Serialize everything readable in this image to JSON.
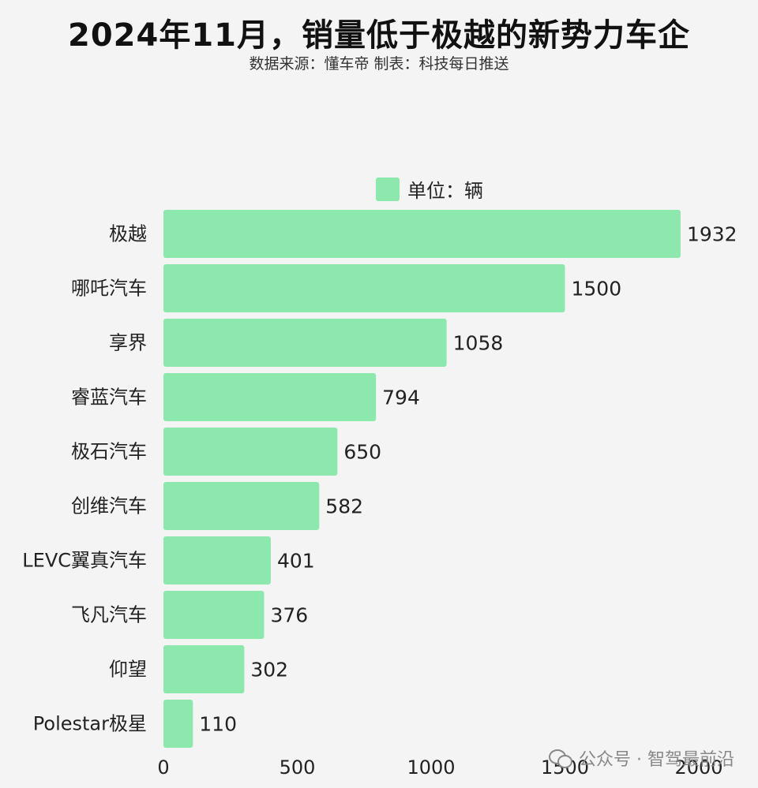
{
  "chart_data": {
    "type": "bar",
    "orientation": "horizontal",
    "title": "2024年11月，销量低于极越的新势力车企",
    "subtitle": "数据来源：懂车帝 制表：科技每日推送",
    "legend": {
      "label": "单位：辆",
      "placement": "top"
    },
    "categories": [
      "极越",
      "哪吒汽车",
      "享界",
      "睿蓝汽车",
      "极石汽车",
      "创维汽车",
      "LEVC翼真汽车",
      "飞凡汽车",
      "仰望",
      "Polestar极星"
    ],
    "values": [
      1932,
      1500,
      1058,
      794,
      650,
      582,
      401,
      376,
      302,
      110
    ],
    "xlim": [
      0,
      2000
    ],
    "xticks": [
      0,
      500,
      1000,
      1500,
      2000
    ],
    "grid": false,
    "bar_color": "#8de8ad"
  },
  "watermark": {
    "icon": "wechat-icon",
    "text": "公众号 · 智驾最前沿"
  }
}
